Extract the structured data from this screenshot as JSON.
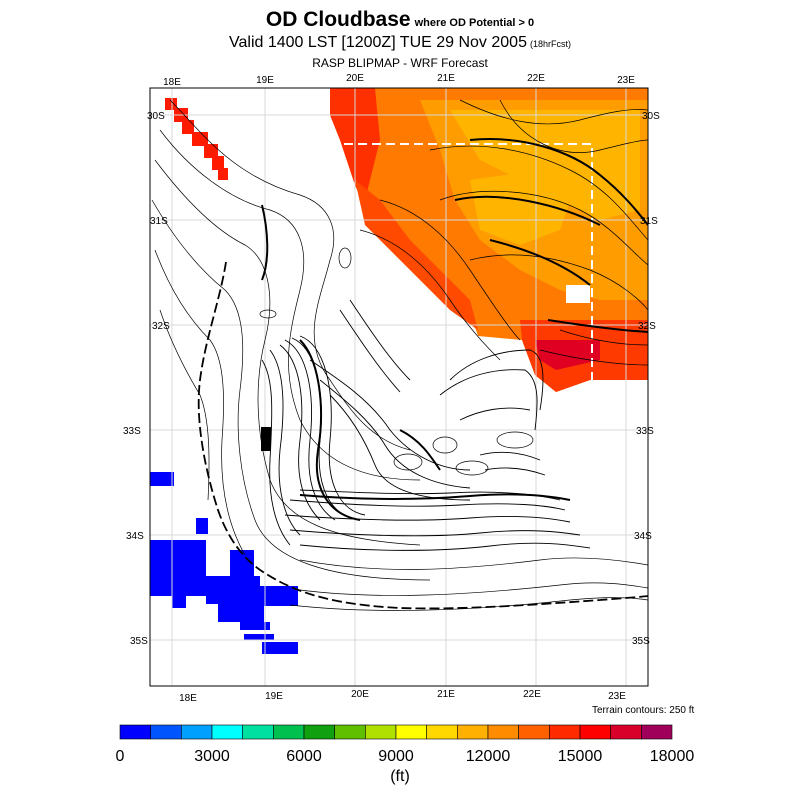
{
  "header": {
    "title": "OD Cloudbase",
    "title_sub": "where OD Potential > 0",
    "valid": "Valid 1400 LST [1200Z] TUE 29 Nov 2005",
    "forecast_hours": "(18hrFcst)",
    "model": "RASP BLIPMAP - WRF Forecast"
  },
  "map": {
    "lon_labels_top": [
      "18E",
      "19E",
      "20E",
      "21E",
      "22E",
      "23E"
    ],
    "lon_labels_bottom": [
      "18E",
      "19E",
      "20E",
      "21E",
      "22E",
      "23E"
    ],
    "lat_labels_left": [
      "30S",
      "31S",
      "32S",
      "33S",
      "34S",
      "35S"
    ],
    "lat_labels_right": [
      "30S",
      "31S",
      "32S",
      "33S",
      "34S",
      "35S"
    ],
    "terrain_note": "Terrain contours: 250 ft"
  },
  "colorbar": {
    "colors": [
      "#0000ff",
      "#0055ff",
      "#00a0ff",
      "#00ffff",
      "#00e0a0",
      "#00c050",
      "#10a010",
      "#60c000",
      "#b0e000",
      "#ffff00",
      "#ffd800",
      "#ffb000",
      "#ff8c00",
      "#ff6000",
      "#ff2a00",
      "#ff0000",
      "#d8002a",
      "#a0005a"
    ],
    "tick_labels": [
      "0",
      "3000",
      "6000",
      "9000",
      "12000",
      "15000",
      "18000"
    ],
    "units": "(ft)"
  }
}
